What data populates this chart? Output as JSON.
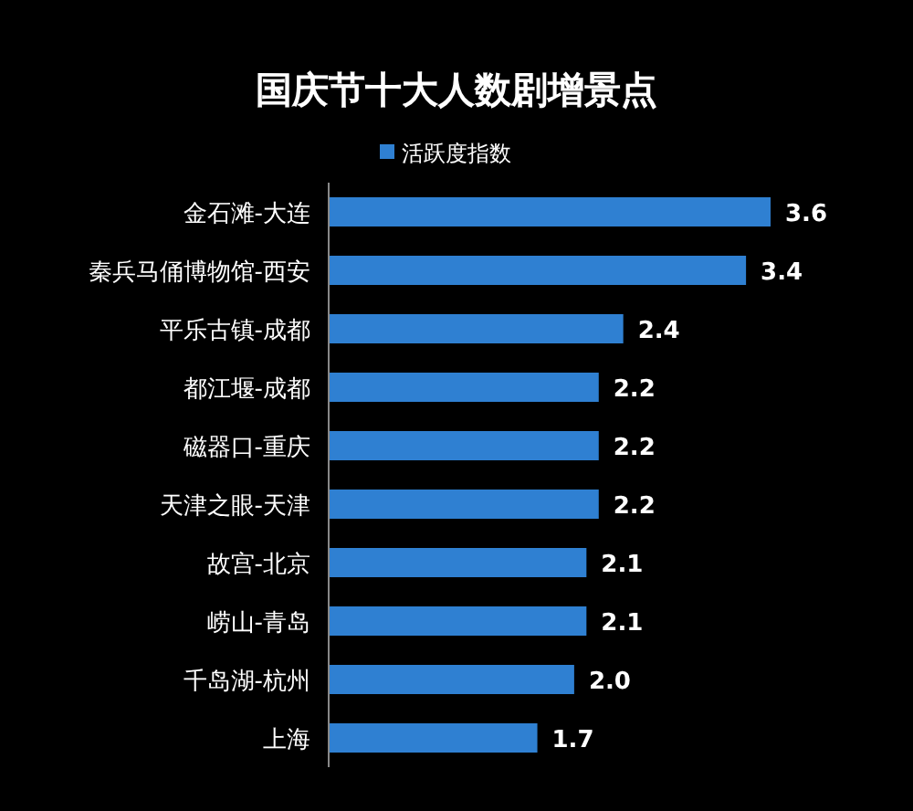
{
  "chart_data": {
    "type": "bar",
    "orientation": "horizontal",
    "title": "国庆节十大人数剧增景点",
    "categories": [
      "金石滩-大连",
      "秦兵马俑博物馆-西安",
      "平乐古镇-成都",
      "都江堰-成都",
      "磁器口-重庆",
      "天津之眼-天津",
      "故宫-北京",
      "崂山-青岛",
      "千岛湖-杭州",
      "上海"
    ],
    "series": [
      {
        "name": "活跃度指数",
        "color": "#2f80d2",
        "values": [
          3.6,
          3.4,
          2.4,
          2.2,
          2.2,
          2.2,
          2.1,
          2.1,
          2.0,
          1.7
        ],
        "value_labels": [
          "3.6",
          "3.4",
          "2.4",
          "2.2",
          "2.2",
          "2.2",
          "2.1",
          "2.1",
          "2.0",
          "1.7"
        ]
      }
    ],
    "legend": "top"
  }
}
